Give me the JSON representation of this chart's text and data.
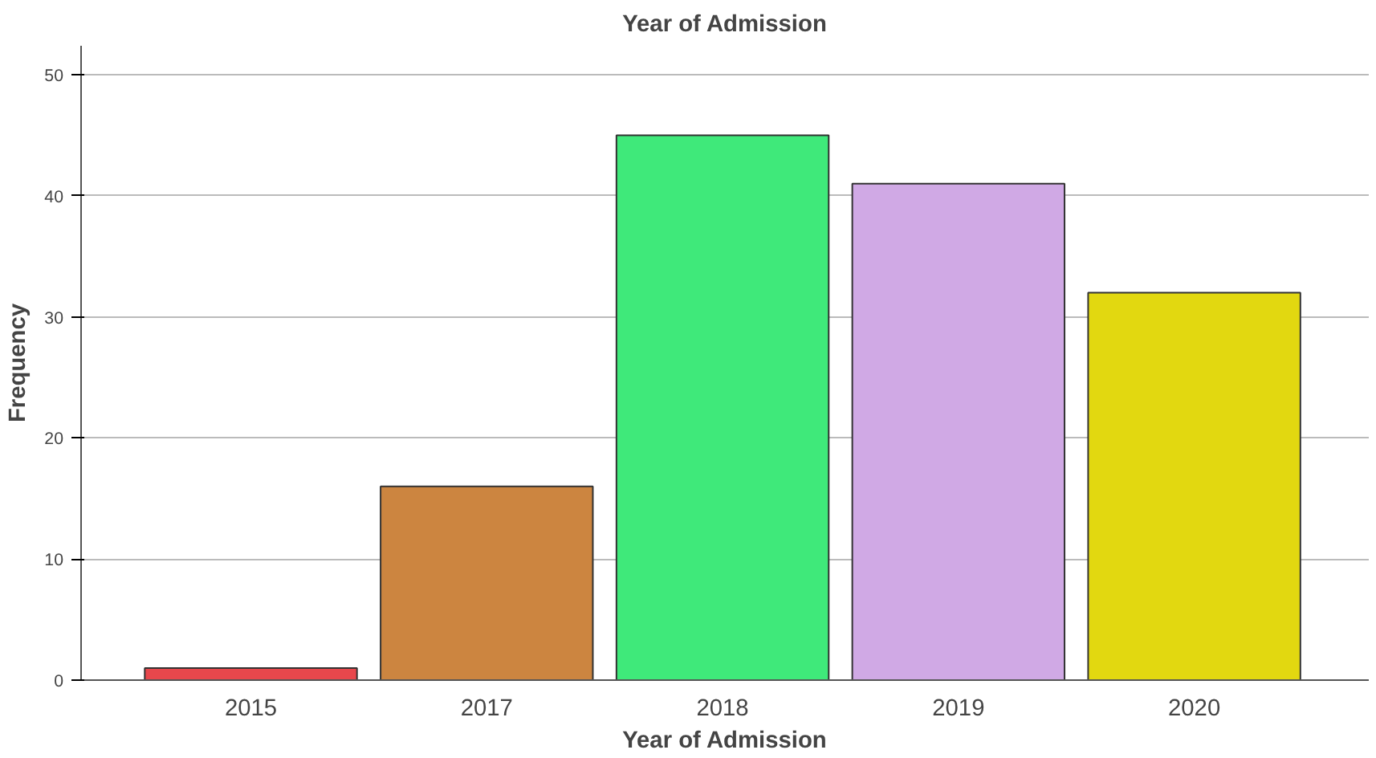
{
  "chart_data": {
    "type": "bar",
    "title": "Year of Admission",
    "xlabel": "Year of Admission",
    "ylabel": "Frequency",
    "categories": [
      "2015",
      "2017",
      "2018",
      "2019",
      "2020"
    ],
    "values": [
      1,
      16,
      45,
      41,
      32
    ],
    "colors": [
      "#e8474c",
      "#cc8540",
      "#3fe97a",
      "#d0a9e5",
      "#e2d810"
    ],
    "ylim": [
      0,
      52.4
    ],
    "yticks": [
      0,
      10,
      20,
      30,
      40,
      50
    ],
    "grid": "y"
  }
}
